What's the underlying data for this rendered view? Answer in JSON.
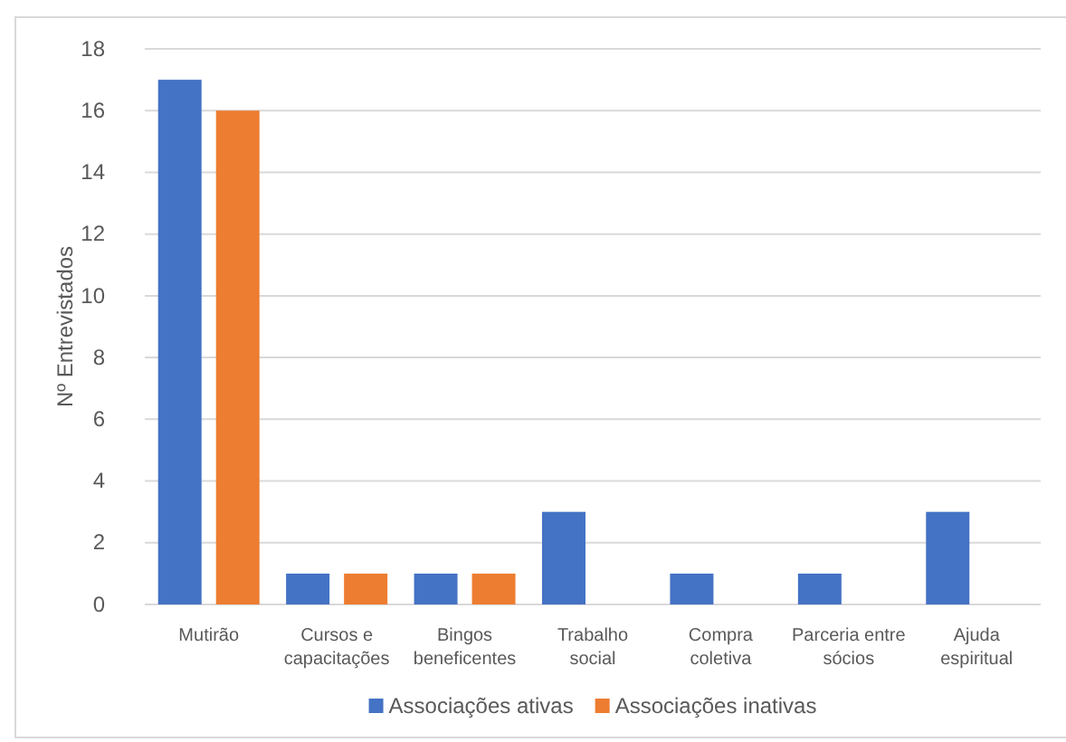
{
  "chart_data": {
    "type": "bar",
    "ylabel": "Nº Entrevistados",
    "categories": [
      "Mutirão",
      "Cursos e capacitações",
      "Bingos beneficentes",
      "Trabalho social",
      "Compra coletiva",
      "Parceria entre sócios",
      "Ajuda espiritual"
    ],
    "series": [
      {
        "name": "Associações ativas",
        "color": "#4472c4",
        "values": [
          17,
          1,
          1,
          3,
          1,
          1,
          3
        ]
      },
      {
        "name": "Associações inativas",
        "color": "#ed7d31",
        "values": [
          16,
          1,
          1,
          0,
          0,
          0,
          0
        ]
      }
    ],
    "ylim": [
      0,
      18
    ],
    "yticks": [
      0,
      2,
      4,
      6,
      8,
      10,
      12,
      14,
      16,
      18
    ],
    "grid": "y",
    "legend": "bottom"
  }
}
